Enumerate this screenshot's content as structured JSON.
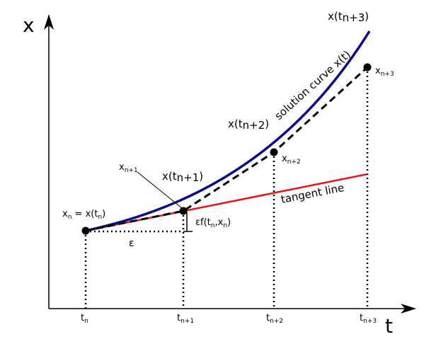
{
  "axes": {
    "x_label": "x",
    "t_label": "t"
  },
  "ticks": [
    {
      "base": "t",
      "sub": "n"
    },
    {
      "base": "t",
      "sub": "n+1"
    },
    {
      "base": "t",
      "sub": "n+2"
    },
    {
      "base": "t",
      "sub": "n+3"
    }
  ],
  "curve": {
    "label": "solution curve x(t)",
    "color": "#0a0a8c",
    "exact_labels": [
      {
        "prefix": "x(t",
        "sub": "n+1",
        "suffix": ")"
      },
      {
        "prefix": "x(t",
        "sub": "n+2",
        "suffix": ")"
      },
      {
        "prefix": "x(t",
        "sub": "n+3",
        "suffix": ")"
      }
    ]
  },
  "tangent": {
    "label": "tangent line",
    "color": "#ee1111"
  },
  "points": {
    "start": {
      "a": "x",
      "a_sub": "n",
      "b": " = x(t",
      "b_sub": "n",
      "c": ")"
    },
    "approx": [
      {
        "base": "x",
        "sub": "n+1"
      },
      {
        "base": "x",
        "sub": "n+2"
      },
      {
        "base": "x",
        "sub": "n+3"
      }
    ]
  },
  "step": {
    "epsilon": "ε",
    "increment": {
      "a": "εf(t",
      "a_sub": "n",
      "b": ",x",
      "b_sub": "n",
      "c": ")"
    }
  }
}
